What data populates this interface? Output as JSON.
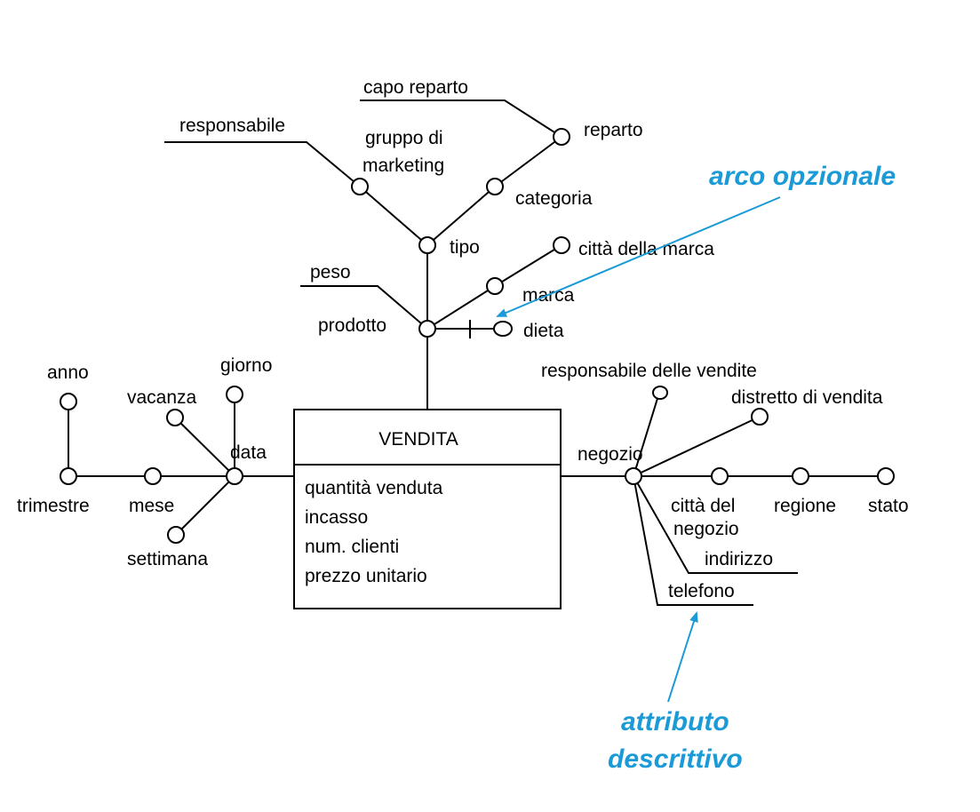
{
  "colors": {
    "accent": "#1a9ad6",
    "line": "#000000"
  },
  "fact": {
    "name": "VENDITA",
    "measures": [
      "quantità venduta",
      "incasso",
      "num. clienti",
      "prezzo unitario"
    ]
  },
  "attributes": {
    "prodotto": "prodotto",
    "tipo": "tipo",
    "gruppo_marketing_line1": "gruppo di",
    "gruppo_marketing_line2": "marketing",
    "responsabile": "responsabile",
    "categoria": "categoria",
    "reparto": "reparto",
    "capo_reparto": "capo reparto",
    "marca": "marca",
    "citta_marca": "città della marca",
    "peso": "peso",
    "dieta": "dieta",
    "data": "data",
    "giorno": "giorno",
    "vacanza": "vacanza",
    "mese": "mese",
    "trimestre": "trimestre",
    "anno": "anno",
    "settimana": "settimana",
    "negozio": "negozio",
    "responsabile_vendite": "responsabile delle vendite",
    "distretto_vendita": "distretto di vendita",
    "citta_negozio_line1": "città del",
    "citta_negozio_line2": "negozio",
    "regione": "regione",
    "stato": "stato",
    "indirizzo": "indirizzo",
    "telefono": "telefono"
  },
  "annotations": {
    "arco_opzionale": "arco opzionale",
    "attributo_line1": "attributo",
    "attributo_line2": "descrittivo"
  }
}
